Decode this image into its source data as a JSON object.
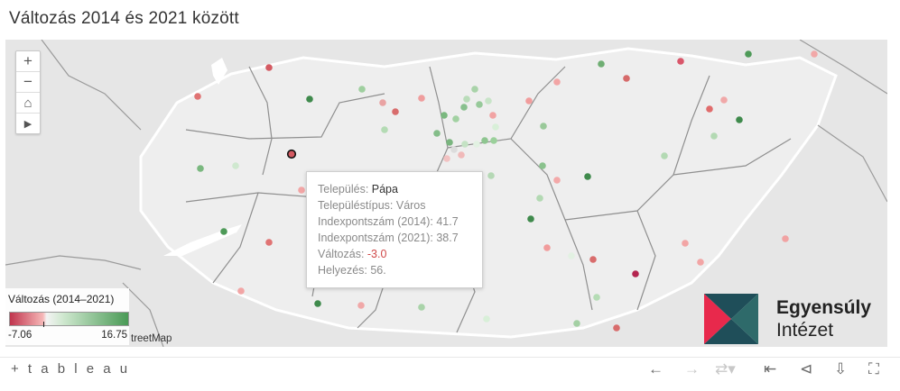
{
  "title": "Változás 2014 és 2021 között",
  "map_controls": {
    "zoom_in": "+",
    "zoom_out": "−",
    "home": "⌂",
    "play": "▶"
  },
  "tooltip": {
    "rows": [
      {
        "label": "Település: ",
        "value": "Pápa"
      },
      {
        "label": "Településtípus: ",
        "value": "Város"
      },
      {
        "label": "Indexpontszám (2014): ",
        "value": "41.7"
      },
      {
        "label": "Indexpontszám (2021): ",
        "value": "38.7"
      },
      {
        "label": "Változás: ",
        "value": "-3.0"
      },
      {
        "label": "Helyezés: ",
        "value": "56."
      }
    ]
  },
  "legend": {
    "title": "Változás (2014–2021)",
    "min": "-7.06",
    "max": "16.75"
  },
  "attribution": "treetMap",
  "logo": {
    "line1": "Egyensúly",
    "line2": "Intézet"
  },
  "footer": {
    "brand": "+ t a b l e a u",
    "undo_icon": "arrow-left-icon",
    "redo_icon": "arrow-right-icon",
    "revert_icon": "revert-icon",
    "reset_icon": "reset-icon",
    "share_icon": "share-icon",
    "download_icon": "download-icon",
    "fullscreen_icon": "fullscreen-icon"
  },
  "colors": {
    "neg_strong": "#c0344d",
    "neg_light": "#f4a8a8",
    "neutral": "#f0f0f0",
    "pos_light": "#b5dcb5",
    "pos_strong": "#4a9a56",
    "logo_red": "#e8294c",
    "logo_dark": "#1f4e59"
  }
}
